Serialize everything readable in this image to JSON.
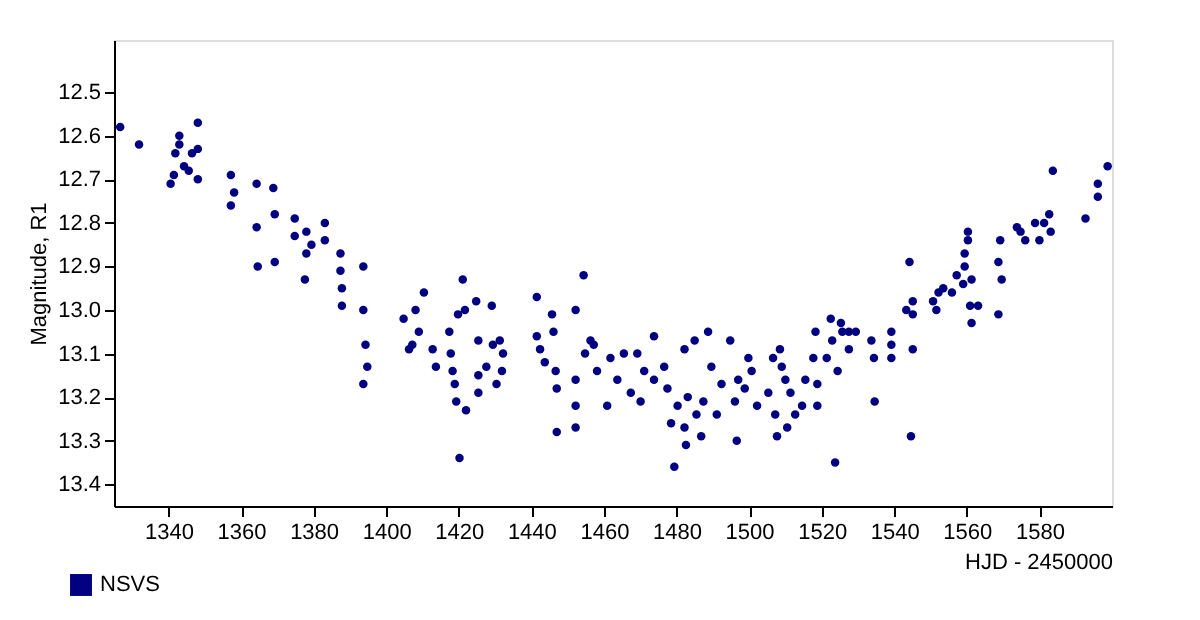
{
  "chart_data": {
    "type": "scatter",
    "xlabel": "HJD - 2450000",
    "ylabel": "Magnitude, R1",
    "xlim": [
      1325,
      1600
    ],
    "ylim": [
      13.45,
      12.38
    ],
    "xticks": [
      1340,
      1360,
      1380,
      1400,
      1420,
      1440,
      1460,
      1480,
      1500,
      1520,
      1540,
      1560,
      1580
    ],
    "yticks": [
      12.5,
      12.6,
      12.7,
      12.8,
      12.9,
      {
        "value": 13,
        "label": "13.0"
      },
      13.1,
      13.2,
      13.3,
      13.4
    ],
    "grid": false,
    "legend": "bottom left",
    "marker": "circle",
    "series": [
      {
        "name": "NSVS",
        "color": "#000080",
        "x": [
          1326.7,
          1331.9,
          1340.6,
          1341.5,
          1341.9,
          1343.0,
          1343.0,
          1344.3,
          1345.6,
          1346.5,
          1348.1,
          1348.1,
          1348.1,
          1357.2,
          1357.2,
          1358.1,
          1364.3,
          1364.3,
          1364.6,
          1368.9,
          1369.3,
          1369.3,
          1374.8,
          1374.8,
          1378.0,
          1378.0,
          1377.6,
          1379.4,
          1383.1,
          1383.1,
          1387.4,
          1387.4,
          1387.8,
          1387.8,
          1393.7,
          1393.7,
          1393.7,
          1394.3,
          1394.8,
          1404.8,
          1406.3,
          1407.2,
          1408.1,
          1409.0,
          1410.4,
          1412.8,
          1413.7,
          1417.4,
          1417.8,
          1418.3,
          1418.9,
          1419.3,
          1419.8,
          1420.2,
          1421.1,
          1421.7,
          1422.0,
          1424.8,
          1425.4,
          1425.4,
          1425.4,
          1427.6,
          1429.1,
          1429.4,
          1430.4,
          1431.3,
          1431.9,
          1432.2,
          1441.5,
          1441.5,
          1442.4,
          1443.7,
          1445.7,
          1446.1,
          1446.7,
          1447.0,
          1447.0,
          1452.2,
          1452.2,
          1452.2,
          1452.2,
          1454.4,
          1454.8,
          1456.3,
          1457.2,
          1458.1,
          1460.9,
          1461.8,
          1463.7,
          1465.5,
          1467.4,
          1469.2,
          1470.1,
          1471.1,
          1473.8,
          1473.8,
          1476.6,
          1477.5,
          1478.5,
          1479.4,
          1480.3,
          1482.2,
          1482.2,
          1482.6,
          1483.1,
          1485.0,
          1485.5,
          1486.8,
          1487.4,
          1488.7,
          1489.6,
          1491.1,
          1492.4,
          1494.8,
          1496.1,
          1496.6,
          1497.0,
          1498.8,
          1499.8,
          1500.7,
          1502.2,
          1505.3,
          1506.6,
          1507.2,
          1507.7,
          1508.5,
          1509.0,
          1510.0,
          1510.5,
          1511.4,
          1512.7,
          1514.6,
          1515.5,
          1517.7,
          1518.3,
          1518.8,
          1518.8,
          1521.4,
          1522.5,
          1522.9,
          1523.7,
          1524.4,
          1525.3,
          1525.7,
          1527.5,
          1527.5,
          1529.4,
          1533.7,
          1534.4,
          1534.6,
          1539.2,
          1539.2,
          1539.2,
          1543.3,
          1544.2,
          1544.6,
          1545.1,
          1545.1,
          1545.1,
          1550.7,
          1551.6,
          1552.2,
          1553.5,
          1555.9,
          1557.2,
          1559.0,
          1559.4,
          1559.4,
          1560.3,
          1560.3,
          1560.9,
          1561.3,
          1561.3,
          1563.1,
          1568.7,
          1568.7,
          1569.2,
          1569.6,
          1573.8,
          1574.8,
          1576.1,
          1578.8,
          1580.0,
          1581.3,
          1582.7,
          1583.1,
          1583.7,
          1592.7,
          1596.1,
          1596.1,
          1598.8
        ],
        "values": [
          12.58,
          12.62,
          12.71,
          12.69,
          12.64,
          12.6,
          12.62,
          12.67,
          12.68,
          12.64,
          12.57,
          12.63,
          12.7,
          12.69,
          12.76,
          12.73,
          12.71,
          12.81,
          12.9,
          12.72,
          12.78,
          12.89,
          12.79,
          12.83,
          12.82,
          12.87,
          12.93,
          12.85,
          12.8,
          12.84,
          12.87,
          12.91,
          12.95,
          12.99,
          12.9,
          13.0,
          13.17,
          13.08,
          13.13,
          13.02,
          13.09,
          13.08,
          13.0,
          13.05,
          12.96,
          13.09,
          13.13,
          13.05,
          13.1,
          13.14,
          13.17,
          13.21,
          13.01,
          13.34,
          12.93,
          13.0,
          13.23,
          12.98,
          13.07,
          13.15,
          13.19,
          13.13,
          12.99,
          13.08,
          13.17,
          13.07,
          13.14,
          13.1,
          12.97,
          13.06,
          13.09,
          13.12,
          13.01,
          13.05,
          13.14,
          13.18,
          13.28,
          13.0,
          13.16,
          13.22,
          13.27,
          12.92,
          13.1,
          13.07,
          13.08,
          13.14,
          13.22,
          13.11,
          13.16,
          13.1,
          13.19,
          13.1,
          13.21,
          13.14,
          13.06,
          13.16,
          13.13,
          13.18,
          13.26,
          13.36,
          13.22,
          13.09,
          13.27,
          13.31,
          13.2,
          13.07,
          13.24,
          13.29,
          13.21,
          13.05,
          13.13,
          13.24,
          13.17,
          13.07,
          13.21,
          13.3,
          13.16,
          13.18,
          13.11,
          13.14,
          13.22,
          13.19,
          13.11,
          13.24,
          13.29,
          13.09,
          13.13,
          13.16,
          13.27,
          13.19,
          13.24,
          13.22,
          13.16,
          13.11,
          13.05,
          13.22,
          13.17,
          13.11,
          13.02,
          13.07,
          13.35,
          13.14,
          13.03,
          13.05,
          13.05,
          13.09,
          13.05,
          13.07,
          13.11,
          13.21,
          13.05,
          13.08,
          13.11,
          13.0,
          12.89,
          13.29,
          12.98,
          13.01,
          13.09,
          12.98,
          13.0,
          12.96,
          12.95,
          12.96,
          12.92,
          12.94,
          12.9,
          12.87,
          12.84,
          12.82,
          12.99,
          12.93,
          13.03,
          12.99,
          12.89,
          13.01,
          12.84,
          12.93,
          12.81,
          12.82,
          12.84,
          12.8,
          12.84,
          12.8,
          12.78,
          12.82,
          12.68,
          12.79,
          12.71,
          12.74,
          12.67
        ]
      }
    ]
  }
}
